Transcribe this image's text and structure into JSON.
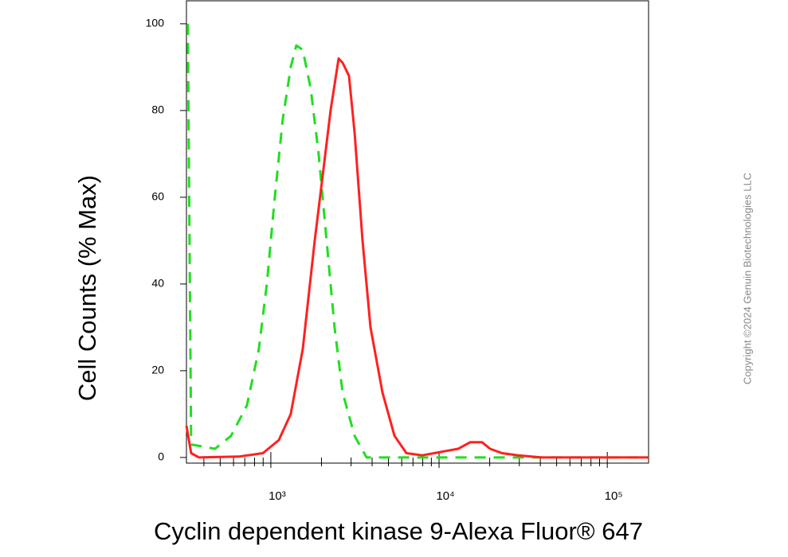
{
  "chart_data": {
    "type": "line",
    "x_label": "Cyclin dependent kinase 9-Alexa Fluor® 647",
    "y_label": "Cell Counts (% Max)",
    "copyright": "Copyright ©2024 Genuin Biotechnologies LLC",
    "xscale": "log",
    "xlim": [
      315,
      176000
    ],
    "ylim": [
      -1.3,
      105.3
    ],
    "xticks": [
      {
        "value": 1000,
        "label": "10³"
      },
      {
        "value": 10000,
        "label": "10⁴"
      },
      {
        "value": 100000,
        "label": "10⁵"
      }
    ],
    "xminorticks": [
      400,
      500,
      600,
      700,
      800,
      900,
      2000,
      3000,
      4000,
      5000,
      6000,
      7000,
      8000,
      9000,
      20000,
      30000,
      40000,
      50000,
      60000,
      70000,
      80000,
      90000
    ],
    "yticks": [
      0,
      20,
      40,
      60,
      80,
      100
    ],
    "series": [
      {
        "color": "#ff2020",
        "style": "solid",
        "x": [
          315,
          336,
          374,
          646,
          897,
          1115,
          1313,
          1548,
          1824,
          2033,
          2265,
          2528,
          2672,
          2913,
          3145,
          3508,
          3911,
          4608,
          5431,
          6398,
          7943,
          9373,
          11040,
          13000,
          15310,
          18040,
          20110,
          23660,
          29420,
          40830,
          176000
        ],
        "values": [
          7.3,
          1,
          0,
          0.2,
          1,
          4,
          10,
          25,
          50,
          65,
          80,
          92,
          91,
          88,
          75,
          50,
          30,
          15,
          5,
          1,
          0.5,
          1,
          1.5,
          2,
          3.5,
          3.5,
          2,
          1,
          0.5,
          0,
          0
        ]
      },
      {
        "color": "#22dd22",
        "style": "dashed",
        "x": [
          321,
          336,
          466,
          580,
          721,
          849,
          947,
          1056,
          1178,
          1313,
          1418,
          1548,
          1726,
          1924,
          2146,
          2393,
          2672,
          3145,
          3707,
          11040,
          176000
        ],
        "values": [
          100,
          3,
          2,
          5,
          12,
          25,
          40,
          60,
          78,
          90,
          95,
          94,
          85,
          70,
          50,
          30,
          15,
          5,
          0,
          0,
          0
        ]
      }
    ]
  }
}
